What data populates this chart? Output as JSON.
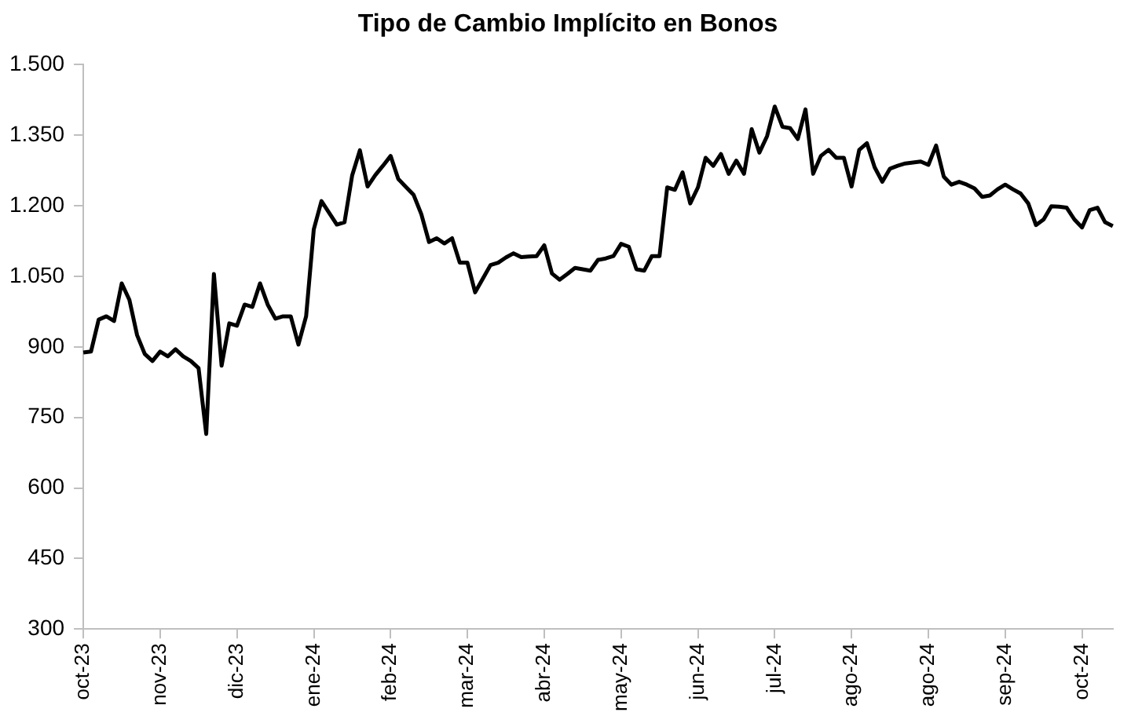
{
  "chart_data": {
    "type": "line",
    "title": "Tipo de Cambio Implícito en Bonos",
    "categories": [
      "oct-23",
      null,
      null,
      null,
      null,
      null,
      null,
      null,
      null,
      null,
      "nov-23",
      null,
      null,
      null,
      null,
      null,
      null,
      null,
      null,
      null,
      "dic-23",
      null,
      null,
      null,
      null,
      null,
      null,
      null,
      null,
      null,
      "ene-24",
      null,
      null,
      null,
      null,
      null,
      null,
      null,
      null,
      null,
      "feb-24",
      null,
      null,
      null,
      null,
      null,
      null,
      null,
      null,
      null,
      "mar-24",
      null,
      null,
      null,
      null,
      null,
      null,
      null,
      null,
      null,
      "abr-24",
      null,
      null,
      null,
      null,
      null,
      null,
      null,
      null,
      null,
      "may-24",
      null,
      null,
      null,
      null,
      null,
      null,
      null,
      null,
      null,
      "jun-24",
      null,
      null,
      null,
      null,
      null,
      null,
      null,
      null,
      null,
      "jul-24",
      null,
      null,
      null,
      null,
      null,
      null,
      null,
      null,
      null,
      "ago-24",
      null,
      null,
      null,
      null,
      null,
      null,
      null,
      null,
      null,
      "ago-24",
      null,
      null,
      null,
      null,
      null,
      null,
      null,
      null,
      null,
      "sep-24",
      null,
      null,
      null,
      null,
      null,
      null,
      null,
      null,
      null,
      "oct-24",
      null,
      null,
      null,
      null
    ],
    "series": [
      {
        "color": "#000000",
        "values": [
          888,
          890,
          958,
          965,
          955,
          1035,
          1000,
          925,
          885,
          870,
          890,
          880,
          895,
          880,
          870,
          855,
          715,
          1055,
          860,
          950,
          945,
          990,
          985,
          1035,
          990,
          960,
          965,
          965,
          905,
          965,
          1150,
          1210,
          1185,
          1160,
          1165,
          1265,
          1318,
          1241,
          1265,
          1285,
          1306,
          1257,
          1240,
          1223,
          1182,
          1123,
          1131,
          1120,
          1131,
          1079,
          1079,
          1016,
          1045,
          1074,
          1079,
          1090,
          1099,
          1091,
          1092,
          1093,
          1116,
          1056,
          1043,
          1055,
          1068,
          1065,
          1062,
          1085,
          1088,
          1093,
          1119,
          1113,
          1065,
          1062,
          1093,
          1093,
          1239,
          1234,
          1271,
          1205,
          1239,
          1302,
          1285,
          1310,
          1268,
          1296,
          1268,
          1363,
          1313,
          1348,
          1411,
          1368,
          1365,
          1342,
          1405,
          1268,
          1306,
          1319,
          1302,
          1302,
          1241,
          1319,
          1333,
          1282,
          1251,
          1279,
          1285,
          1290,
          1292,
          1294,
          1287,
          1328,
          1262,
          1245,
          1251,
          1245,
          1237,
          1219,
          1222,
          1235,
          1245,
          1235,
          1226,
          1205,
          1159,
          1171,
          1199,
          1198,
          1196,
          1171,
          1154,
          1191,
          1196,
          1165,
          1157
        ]
      }
    ],
    "ylim": [
      300,
      1500
    ],
    "yticks": [
      {
        "value": 300,
        "label": "300"
      },
      {
        "value": 450,
        "label": "450"
      },
      {
        "value": 600,
        "label": "600"
      },
      {
        "value": 750,
        "label": "750"
      },
      {
        "value": 900,
        "label": "900"
      },
      {
        "value": 1050,
        "label": "1.050"
      },
      {
        "value": 1200,
        "label": "1.200"
      },
      {
        "value": 1350,
        "label": "1.350"
      },
      {
        "value": 1500,
        "label": "1.500"
      }
    ],
    "grid": false,
    "legend": false,
    "marker": "none",
    "line_style": "solid"
  }
}
